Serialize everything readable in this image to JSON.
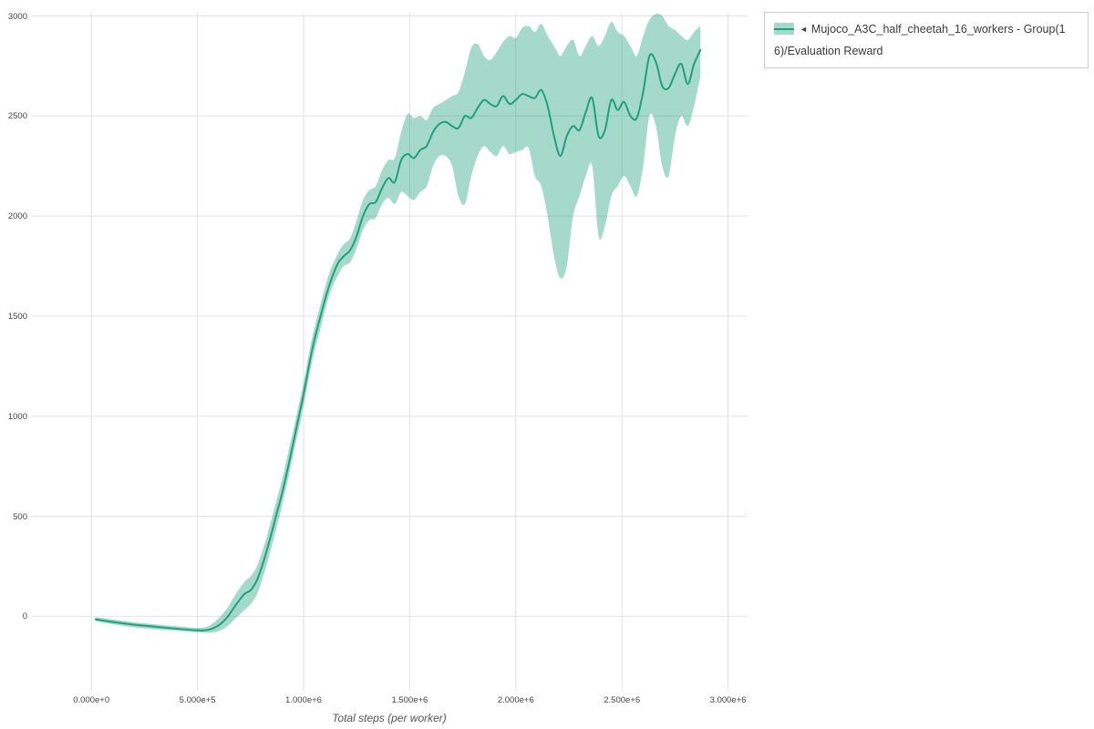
{
  "page": {
    "background": "#ffffff"
  },
  "legend": {
    "arrow": "◄",
    "label": "Mujoco_A3C_half_cheetah_16_workers - Group(16)/Evaluation Reward"
  },
  "chart_data": {
    "type": "line",
    "title": "",
    "xlabel": "Total steps (per worker)",
    "ylabel": "",
    "grid": true,
    "legend_position": "top-right",
    "xlim": [
      -280000,
      3092000
    ],
    "ylim": [
      -372,
      3016
    ],
    "x_ticks": [
      {
        "value": 0,
        "label": "0.000e+0"
      },
      {
        "value": 500000,
        "label": "5.000e+5"
      },
      {
        "value": 1000000,
        "label": "1.000e+6"
      },
      {
        "value": 1500000,
        "label": "1.500e+6"
      },
      {
        "value": 2000000,
        "label": "2.000e+6"
      },
      {
        "value": 2500000,
        "label": "2.500e+6"
      },
      {
        "value": 3000000,
        "label": "3.000e+6"
      }
    ],
    "y_ticks": [
      {
        "value": 0,
        "label": "0"
      },
      {
        "value": 500,
        "label": "500"
      },
      {
        "value": 1000,
        "label": "1000"
      },
      {
        "value": 1500,
        "label": "1500"
      },
      {
        "value": 2000,
        "label": "2000"
      },
      {
        "value": 2500,
        "label": "2500"
      },
      {
        "value": 3000,
        "label": "3000"
      }
    ],
    "series": [
      {
        "name": "Mujoco_A3C_half_cheetah_16_workers - Group(16)/Evaluation Reward",
        "color": "#1fa179",
        "band_color": "#1fa179",
        "band_opacity": 0.4,
        "x": [
          20000,
          100000,
          200000,
          300000,
          400000,
          500000,
          550000,
          600000,
          640000,
          680000,
          720000,
          750000,
          780000,
          810000,
          840000,
          870000,
          900000,
          930000,
          960000,
          1000000,
          1040000,
          1080000,
          1120000,
          1160000,
          1190000,
          1220000,
          1250000,
          1280000,
          1310000,
          1340000,
          1370000,
          1400000,
          1430000,
          1460000,
          1490000,
          1520000,
          1550000,
          1580000,
          1610000,
          1640000,
          1670000,
          1700000,
          1730000,
          1760000,
          1790000,
          1820000,
          1850000,
          1880000,
          1910000,
          1940000,
          1970000,
          2000000,
          2030000,
          2060000,
          2090000,
          2120000,
          2150000,
          2180000,
          2210000,
          2240000,
          2270000,
          2300000,
          2330000,
          2360000,
          2390000,
          2420000,
          2450000,
          2480000,
          2510000,
          2540000,
          2570000,
          2600000,
          2630000,
          2660000,
          2690000,
          2720000,
          2750000,
          2780000,
          2810000,
          2840000,
          2870000
        ],
        "mean": [
          -15,
          -28,
          -42,
          -52,
          -62,
          -70,
          -68,
          -45,
          -5,
          55,
          110,
          130,
          180,
          270,
          380,
          500,
          620,
          760,
          910,
          1110,
          1330,
          1500,
          1650,
          1760,
          1800,
          1830,
          1900,
          2000,
          2060,
          2070,
          2140,
          2190,
          2170,
          2280,
          2310,
          2290,
          2330,
          2350,
          2420,
          2460,
          2470,
          2450,
          2440,
          2500,
          2490,
          2540,
          2580,
          2560,
          2550,
          2600,
          2560,
          2580,
          2610,
          2600,
          2590,
          2630,
          2550,
          2400,
          2300,
          2400,
          2450,
          2430,
          2520,
          2590,
          2400,
          2430,
          2580,
          2530,
          2570,
          2500,
          2490,
          2620,
          2800,
          2770,
          2650,
          2640,
          2710,
          2760,
          2660,
          2760,
          2830
        ],
        "lower": [
          -25,
          -40,
          -55,
          -65,
          -72,
          -80,
          -82,
          -75,
          -50,
          -10,
          30,
          60,
          110,
          200,
          310,
          430,
          560,
          700,
          850,
          1050,
          1270,
          1440,
          1600,
          1700,
          1750,
          1770,
          1840,
          1930,
          1980,
          1990,
          2060,
          2090,
          2060,
          2120,
          2100,
          2080,
          2120,
          2150,
          2250,
          2300,
          2300,
          2250,
          2100,
          2060,
          2200,
          2300,
          2350,
          2320,
          2300,
          2350,
          2310,
          2320,
          2330,
          2340,
          2200,
          2150,
          2000,
          1800,
          1690,
          1750,
          2000,
          2100,
          2200,
          2250,
          1900,
          1950,
          2100,
          2150,
          2200,
          2150,
          2100,
          2250,
          2500,
          2450,
          2250,
          2200,
          2400,
          2500,
          2450,
          2550,
          2700
        ],
        "upper": [
          -5,
          -16,
          -30,
          -40,
          -50,
          -58,
          -50,
          -10,
          40,
          110,
          170,
          200,
          250,
          340,
          450,
          570,
          690,
          830,
          970,
          1170,
          1390,
          1560,
          1710,
          1810,
          1860,
          1890,
          1980,
          2080,
          2130,
          2150,
          2230,
          2280,
          2290,
          2420,
          2510,
          2490,
          2500,
          2480,
          2540,
          2560,
          2580,
          2600,
          2620,
          2720,
          2840,
          2860,
          2800,
          2780,
          2820,
          2870,
          2900,
          2890,
          2940,
          2950,
          2920,
          2960,
          2900,
          2850,
          2800,
          2850,
          2880,
          2800,
          2850,
          2900,
          2850,
          2900,
          2970,
          2920,
          2900,
          2850,
          2800,
          2900,
          2980,
          3010,
          3000,
          2950,
          2930,
          2900,
          2880,
          2920,
          2950
        ]
      }
    ]
  }
}
